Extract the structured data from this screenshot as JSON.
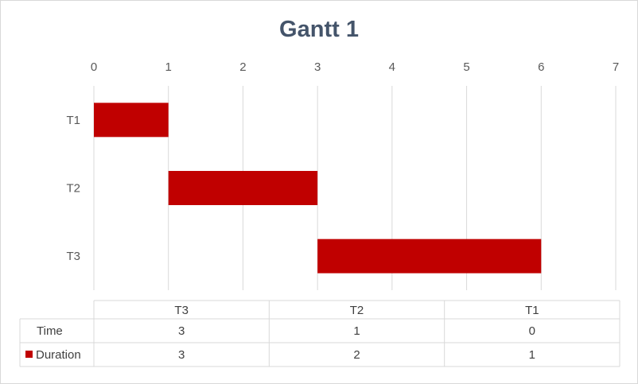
{
  "chart_data": {
    "type": "bar",
    "orientation": "horizontal",
    "title": "Gantt 1",
    "categories": [
      "T1",
      "T2",
      "T3"
    ],
    "series": [
      {
        "name": "Time",
        "values": [
          0,
          1,
          3
        ],
        "visible": false
      },
      {
        "name": "Duration",
        "values": [
          1,
          2,
          3
        ],
        "color": "#c00000"
      }
    ],
    "stacked": true,
    "xlim": [
      0,
      7
    ],
    "xticks": [
      "0",
      "1",
      "2",
      "3",
      "4",
      "5",
      "6",
      "7"
    ],
    "xaxis_position": "top",
    "grid": true,
    "data_table": {
      "columns": [
        "T3",
        "T2",
        "T1"
      ],
      "rows": [
        {
          "label": "Time",
          "values": [
            "3",
            "1",
            "0"
          ],
          "legend_key": false
        },
        {
          "label": "Duration",
          "values": [
            "3",
            "2",
            "1"
          ],
          "legend_key": true
        }
      ]
    }
  }
}
